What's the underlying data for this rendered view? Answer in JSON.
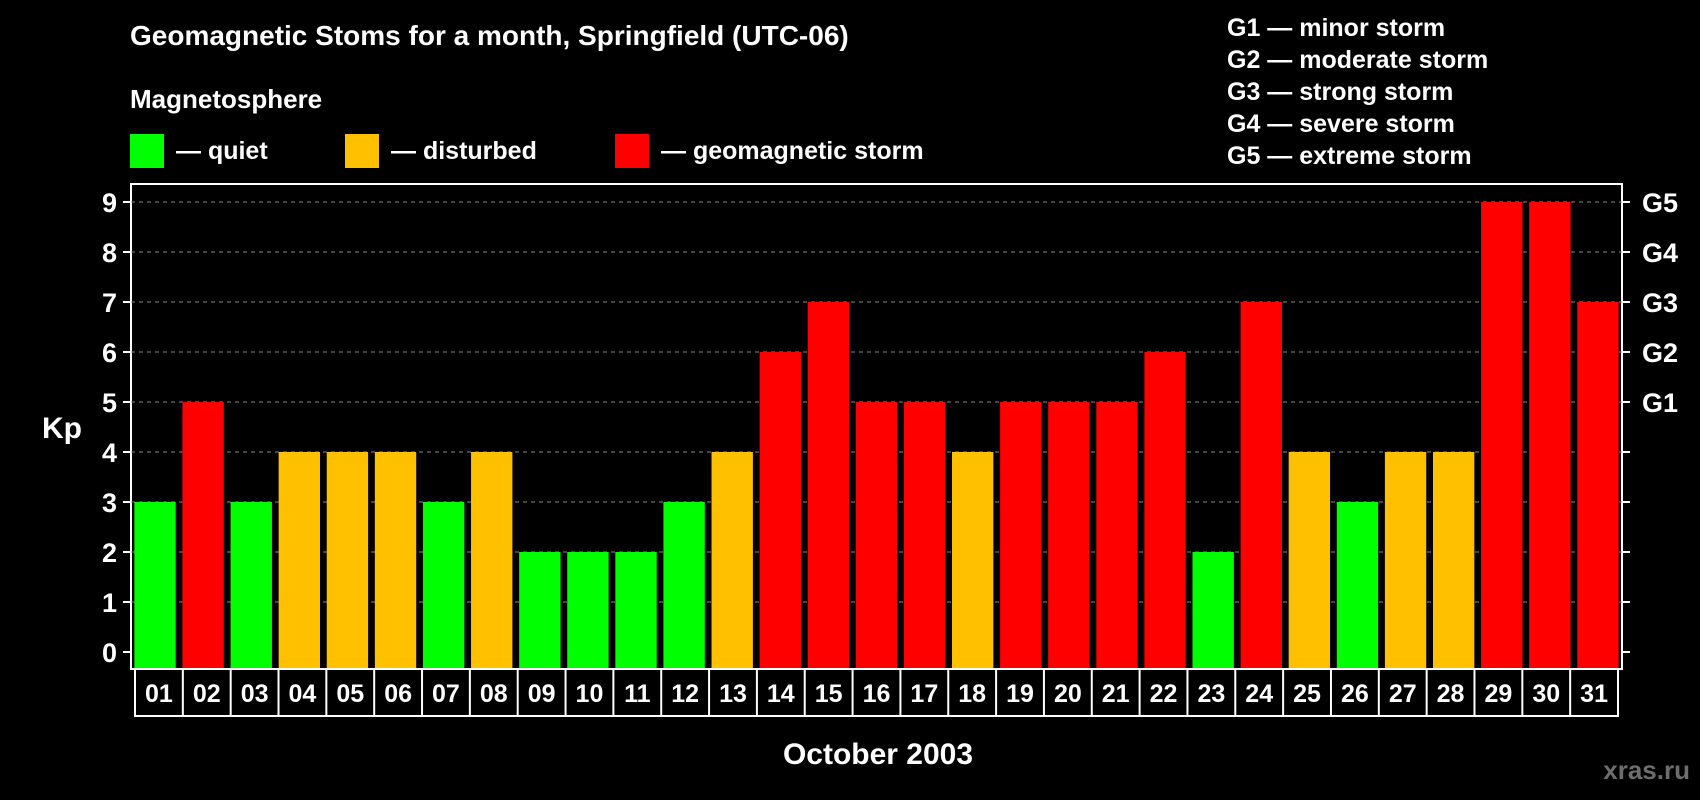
{
  "title": "Geomagnetic Stoms for a month, Springfield (UTC-06)",
  "subtitle": "Magnetosphere",
  "legend": [
    {
      "label": "— quiet",
      "color": "#00ff00"
    },
    {
      "label": "— disturbed",
      "color": "#ffc000"
    },
    {
      "label": "— geomagnetic storm",
      "color": "#ff0000"
    }
  ],
  "storm_scale": [
    "G1 — minor storm",
    "G2 — moderate storm",
    "G3 — strong storm",
    "G4 — severe storm",
    "G5 — extreme storm"
  ],
  "watermark": "xras.ru",
  "colors": {
    "quiet": "#00ff00",
    "disturbed": "#ffc000",
    "storm": "#ff0000"
  },
  "chart_data": {
    "type": "bar",
    "xlabel": "October 2003",
    "ylabel": "Kp",
    "ylim": [
      0,
      9
    ],
    "yticks": [
      "0",
      "1",
      "2",
      "3",
      "4",
      "5",
      "6",
      "7",
      "8",
      "9"
    ],
    "right_axis_labels": [
      {
        "value": 5,
        "label": "G1"
      },
      {
        "value": 6,
        "label": "G2"
      },
      {
        "value": 7,
        "label": "G3"
      },
      {
        "value": 8,
        "label": "G4"
      },
      {
        "value": 9,
        "label": "G5"
      }
    ],
    "grid": true,
    "categories": [
      "01",
      "02",
      "03",
      "04",
      "05",
      "06",
      "07",
      "08",
      "09",
      "10",
      "11",
      "12",
      "13",
      "14",
      "15",
      "16",
      "17",
      "18",
      "19",
      "20",
      "21",
      "22",
      "23",
      "24",
      "25",
      "26",
      "27",
      "28",
      "29",
      "30",
      "31"
    ],
    "values": [
      3,
      5,
      3,
      4,
      4,
      4,
      3,
      4,
      2,
      2,
      2,
      3,
      4,
      6,
      7,
      5,
      5,
      4,
      5,
      5,
      5,
      6,
      2,
      7,
      4,
      3,
      4,
      4,
      9,
      9,
      7
    ]
  }
}
